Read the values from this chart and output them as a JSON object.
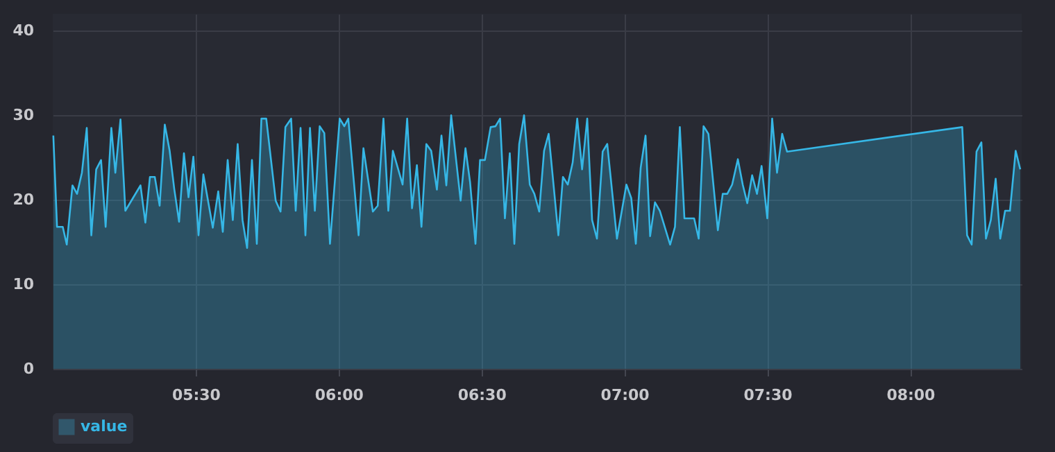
{
  "chart_data": {
    "type": "area",
    "legend": "bottom left",
    "grid": true,
    "xlim": [
      5.0,
      8.39
    ],
    "ylim": [
      0,
      42
    ],
    "xticks": [
      {
        "value": 5.5,
        "label": "05:30"
      },
      {
        "value": 6,
        "label": "06:00"
      },
      {
        "value": 6.5,
        "label": "06:30"
      },
      {
        "value": 7,
        "label": "07:00"
      },
      {
        "value": 7.5,
        "label": "07:30"
      },
      {
        "value": 8,
        "label": "08:00"
      }
    ],
    "yticks": [
      0,
      10,
      20,
      30,
      40
    ],
    "series": [
      {
        "name": "value",
        "color": "#36b7e6",
        "x": [
          5.002,
          5.015,
          5.035,
          5.049,
          5.069,
          5.085,
          5.102,
          5.119,
          5.135,
          5.152,
          5.169,
          5.185,
          5.205,
          5.219,
          5.237,
          5.254,
          5.307,
          5.324,
          5.34,
          5.357,
          5.374,
          5.392,
          5.409,
          5.425,
          5.442,
          5.459,
          5.475,
          5.492,
          5.51,
          5.527,
          5.56,
          5.579,
          5.595,
          5.612,
          5.63,
          5.647,
          5.664,
          5.68,
          5.697,
          5.714,
          5.73,
          5.747,
          5.78,
          5.797,
          5.814,
          5.834,
          5.85,
          5.867,
          5.884,
          5.9,
          5.917,
          5.934,
          5.95,
          5.97,
          6.004,
          6.02,
          6.034,
          6.07,
          6.087,
          6.12,
          6.137,
          6.157,
          6.174,
          6.19,
          6.224,
          6.24,
          6.257,
          6.274,
          6.29,
          6.307,
          6.324,
          6.344,
          6.36,
          6.377,
          6.394,
          6.427,
          6.444,
          6.46,
          6.479,
          6.495,
          6.512,
          6.532,
          6.549,
          6.565,
          6.582,
          6.599,
          6.615,
          6.632,
          6.649,
          6.669,
          6.685,
          6.702,
          6.719,
          6.735,
          6.769,
          6.785,
          6.802,
          6.819,
          6.835,
          6.852,
          6.87,
          6.887,
          6.904,
          6.924,
          6.94,
          6.974,
          7.007,
          7.024,
          7.04,
          7.057,
          7.074,
          7.09,
          7.107,
          7.124,
          7.16,
          7.177,
          7.194,
          7.21,
          7.244,
          7.26,
          7.277,
          7.294,
          7.327,
          7.344,
          7.36,
          7.377,
          7.397,
          7.414,
          7.43,
          7.447,
          7.464,
          7.48,
          7.5,
          7.517,
          7.534,
          7.552,
          7.569,
          8.182,
          8.199,
          8.215,
          8.232,
          8.249,
          8.265,
          8.282,
          8.299,
          8.315,
          8.332,
          8.349,
          8.369,
          8.385
        ],
        "values": [
          27.6,
          16.8,
          16.8,
          14.7,
          21.7,
          20.7,
          23.2,
          28.5,
          15.8,
          23.6,
          24.7,
          16.8,
          28.5,
          23.2,
          29.5,
          18.7,
          21.7,
          17.3,
          22.7,
          22.7,
          19.3,
          28.9,
          25.8,
          21.3,
          17.4,
          25.5,
          20.3,
          25.1,
          15.8,
          23.0,
          16.7,
          21.0,
          16.2,
          24.7,
          17.6,
          26.6,
          17.6,
          14.3,
          24.7,
          14.8,
          29.6,
          29.6,
          19.9,
          18.6,
          28.6,
          29.6,
          18.7,
          28.5,
          15.8,
          28.5,
          18.7,
          28.7,
          27.9,
          14.8,
          29.6,
          28.7,
          29.6,
          15.8,
          26.1,
          18.6,
          19.3,
          29.6,
          18.7,
          25.8,
          21.8,
          29.6,
          19.0,
          24.1,
          16.8,
          26.6,
          25.8,
          21.2,
          27.6,
          21.7,
          30.0,
          19.9,
          26.1,
          22.1,
          14.8,
          24.7,
          24.7,
          28.6,
          28.7,
          29.6,
          17.8,
          25.5,
          14.8,
          26.6,
          30.0,
          21.8,
          20.7,
          18.6,
          25.8,
          27.8,
          15.8,
          22.7,
          21.8,
          24.4,
          29.6,
          23.6,
          29.6,
          17.6,
          15.4,
          25.7,
          26.6,
          15.4,
          21.8,
          20.2,
          14.8,
          23.8,
          27.6,
          15.7,
          19.7,
          18.7,
          14.7,
          16.8,
          28.6,
          17.8,
          17.8,
          15.4,
          28.7,
          27.8,
          16.4,
          20.7,
          20.7,
          21.8,
          24.8,
          21.8,
          19.6,
          22.9,
          20.7,
          24.0,
          17.8,
          29.6,
          23.2,
          27.8,
          25.7,
          28.6,
          15.8,
          14.7,
          25.7,
          26.8,
          15.4,
          17.6,
          22.5,
          15.4,
          18.7,
          18.7,
          25.8,
          23.6
        ]
      }
    ]
  }
}
